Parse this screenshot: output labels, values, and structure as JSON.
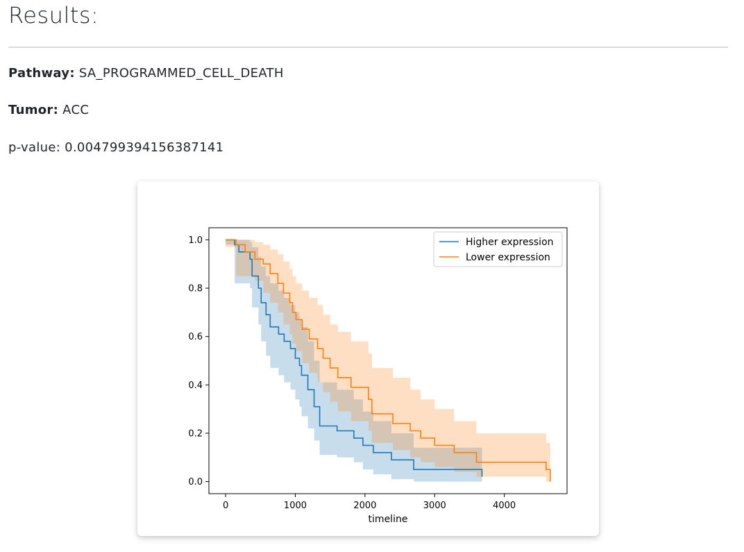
{
  "page": {
    "heading": "Results:",
    "pathway_label": "Pathway:",
    "pathway_value": "SA_PROGRAMMED_CELL_DEATH",
    "tumor_label": "Tumor:",
    "tumor_value": "ACC",
    "pvalue_label": "p-value:",
    "pvalue_value": "0.004799394156387141"
  },
  "chart_data": {
    "type": "line",
    "subtype": "kaplan-meier survival curves with confidence bands",
    "xlabel": "timeline",
    "ylabel": "",
    "xlim": [
      -240,
      4900
    ],
    "ylim": [
      -0.05,
      1.05
    ],
    "xticks": [
      0,
      1000,
      2000,
      3000,
      4000
    ],
    "yticks": [
      0.0,
      0.2,
      0.4,
      0.6,
      0.8,
      1.0
    ],
    "grid": false,
    "legend_position": "top-right",
    "series": [
      {
        "name": "Higher expression",
        "color": "#1f77b4",
        "x": [
          0,
          130,
          190,
          350,
          380,
          470,
          510,
          580,
          640,
          760,
          840,
          930,
          1000,
          1060,
          1090,
          1180,
          1270,
          1350,
          1600,
          1840,
          1970,
          2120,
          2380,
          2700,
          3680
        ],
        "y": [
          1.0,
          0.98,
          0.95,
          0.92,
          0.85,
          0.8,
          0.74,
          0.69,
          0.64,
          0.61,
          0.58,
          0.55,
          0.51,
          0.48,
          0.44,
          0.38,
          0.31,
          0.23,
          0.21,
          0.18,
          0.15,
          0.12,
          0.09,
          0.05,
          0.02
        ],
        "ci_upper": [
          1.0,
          1.0,
          1.0,
          0.99,
          0.97,
          0.93,
          0.89,
          0.85,
          0.82,
          0.79,
          0.76,
          0.73,
          0.7,
          0.67,
          0.64,
          0.58,
          0.5,
          0.41,
          0.38,
          0.34,
          0.29,
          0.25,
          0.2,
          0.14,
          0.1
        ],
        "ci_lower": [
          0.98,
          0.82,
          0.82,
          0.8,
          0.72,
          0.65,
          0.58,
          0.52,
          0.47,
          0.44,
          0.41,
          0.38,
          0.34,
          0.31,
          0.27,
          0.22,
          0.17,
          0.11,
          0.1,
          0.08,
          0.05,
          0.03,
          0.01,
          0.0,
          0.0
        ]
      },
      {
        "name": "Lower expression",
        "color": "#ff7f0e",
        "x": [
          0,
          150,
          280,
          420,
          540,
          640,
          750,
          830,
          920,
          960,
          1010,
          1100,
          1200,
          1320,
          1400,
          1500,
          1610,
          1800,
          2050,
          2100,
          2400,
          2650,
          2800,
          3000,
          3280,
          3600,
          4600
        ],
        "y": [
          1.0,
          0.98,
          0.95,
          0.92,
          0.9,
          0.86,
          0.82,
          0.78,
          0.74,
          0.7,
          0.67,
          0.63,
          0.59,
          0.55,
          0.51,
          0.47,
          0.43,
          0.39,
          0.34,
          0.28,
          0.24,
          0.21,
          0.18,
          0.15,
          0.12,
          0.08,
          0.05
        ],
        "ci_upper": [
          1.0,
          1.0,
          1.0,
          0.99,
          0.98,
          0.96,
          0.94,
          0.91,
          0.88,
          0.85,
          0.82,
          0.79,
          0.76,
          0.73,
          0.69,
          0.65,
          0.62,
          0.58,
          0.53,
          0.47,
          0.43,
          0.38,
          0.34,
          0.3,
          0.25,
          0.2,
          0.16
        ],
        "ci_lower": [
          0.97,
          0.85,
          0.85,
          0.83,
          0.78,
          0.74,
          0.7,
          0.65,
          0.61,
          0.57,
          0.54,
          0.49,
          0.45,
          0.41,
          0.37,
          0.33,
          0.29,
          0.25,
          0.21,
          0.16,
          0.13,
          0.1,
          0.08,
          0.06,
          0.04,
          0.02,
          0.0
        ],
        "tail_end": {
          "x": 4660,
          "y": 0.0
        }
      }
    ]
  }
}
